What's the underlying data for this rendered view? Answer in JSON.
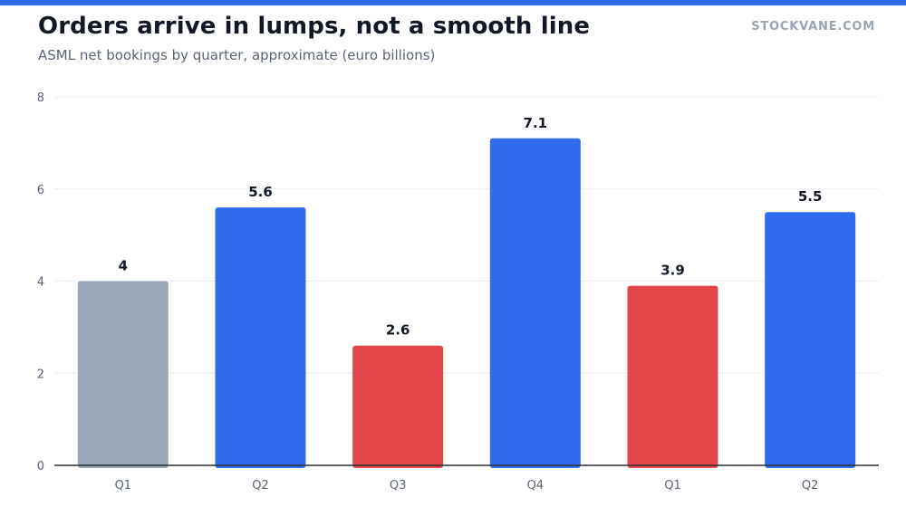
{
  "header": {
    "title": "Orders arrive in lumps, not a smooth line",
    "subtitle": "ASML net bookings by quarter, approximate (euro billions)",
    "brand": "STOCKVANE.COM"
  },
  "colors": {
    "accent": "#2f6cec",
    "baseline": "#9aa7b6",
    "down": "#e2474c",
    "up": "#2f6cec"
  },
  "chart_data": {
    "type": "bar",
    "title": "Orders arrive in lumps, not a smooth line",
    "subtitle": "ASML net bookings by quarter, approximate (euro billions)",
    "xlabel": "",
    "ylabel": "",
    "categories": [
      "Q1",
      "Q2",
      "Q3",
      "Q4",
      "Q1",
      "Q2"
    ],
    "values": [
      4,
      5.6,
      2.6,
      7.1,
      3.9,
      5.5
    ],
    "value_labels": [
      "4",
      "5.6",
      "2.6",
      "7.1",
      "3.9",
      "5.5"
    ],
    "bar_colors": [
      "#9aa7b6",
      "#2f6cec",
      "#e2474c",
      "#2f6cec",
      "#e2474c",
      "#2f6cec"
    ],
    "ylim": [
      0,
      8
    ],
    "yticks": [
      0,
      2,
      4,
      6,
      8
    ],
    "grid": true,
    "legend": "none"
  }
}
